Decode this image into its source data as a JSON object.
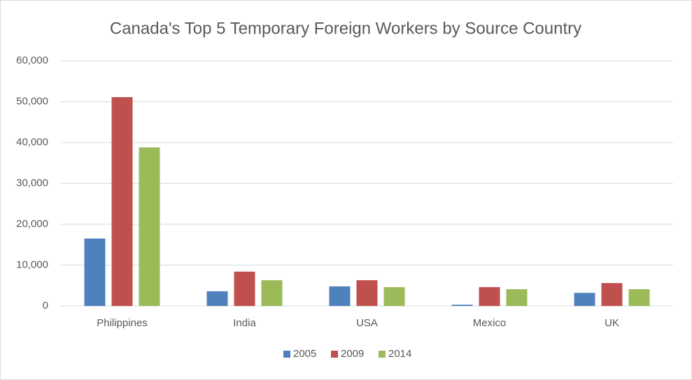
{
  "chart_data": {
    "type": "bar",
    "title": "Canada's Top 5 Temporary Foreign Workers by Source Country",
    "categories": [
      "Philippines",
      "India",
      "USA",
      "Mexico",
      "UK"
    ],
    "series": [
      {
        "name": "2005",
        "color": "#4f81bd",
        "values": [
          16500,
          3600,
          4800,
          300,
          3200
        ]
      },
      {
        "name": "2009",
        "color": "#c0504d",
        "values": [
          51100,
          8400,
          6300,
          4600,
          5600
        ]
      },
      {
        "name": "2014",
        "color": "#9bbb59",
        "values": [
          38800,
          6300,
          4600,
          4100,
          4100
        ]
      }
    ],
    "ylim": [
      0,
      60000
    ],
    "yticks": [
      0,
      {
        "value": 10000,
        "label": "10,000"
      },
      {
        "value": 20000,
        "label": "20,000"
      },
      {
        "value": 30000,
        "label": "30,000"
      },
      {
        "value": 40000,
        "label": "40,000"
      },
      {
        "value": 50000,
        "label": "50,000"
      },
      {
        "value": 60000,
        "label": "60,000"
      }
    ],
    "grid": true,
    "legend": "bottom"
  }
}
